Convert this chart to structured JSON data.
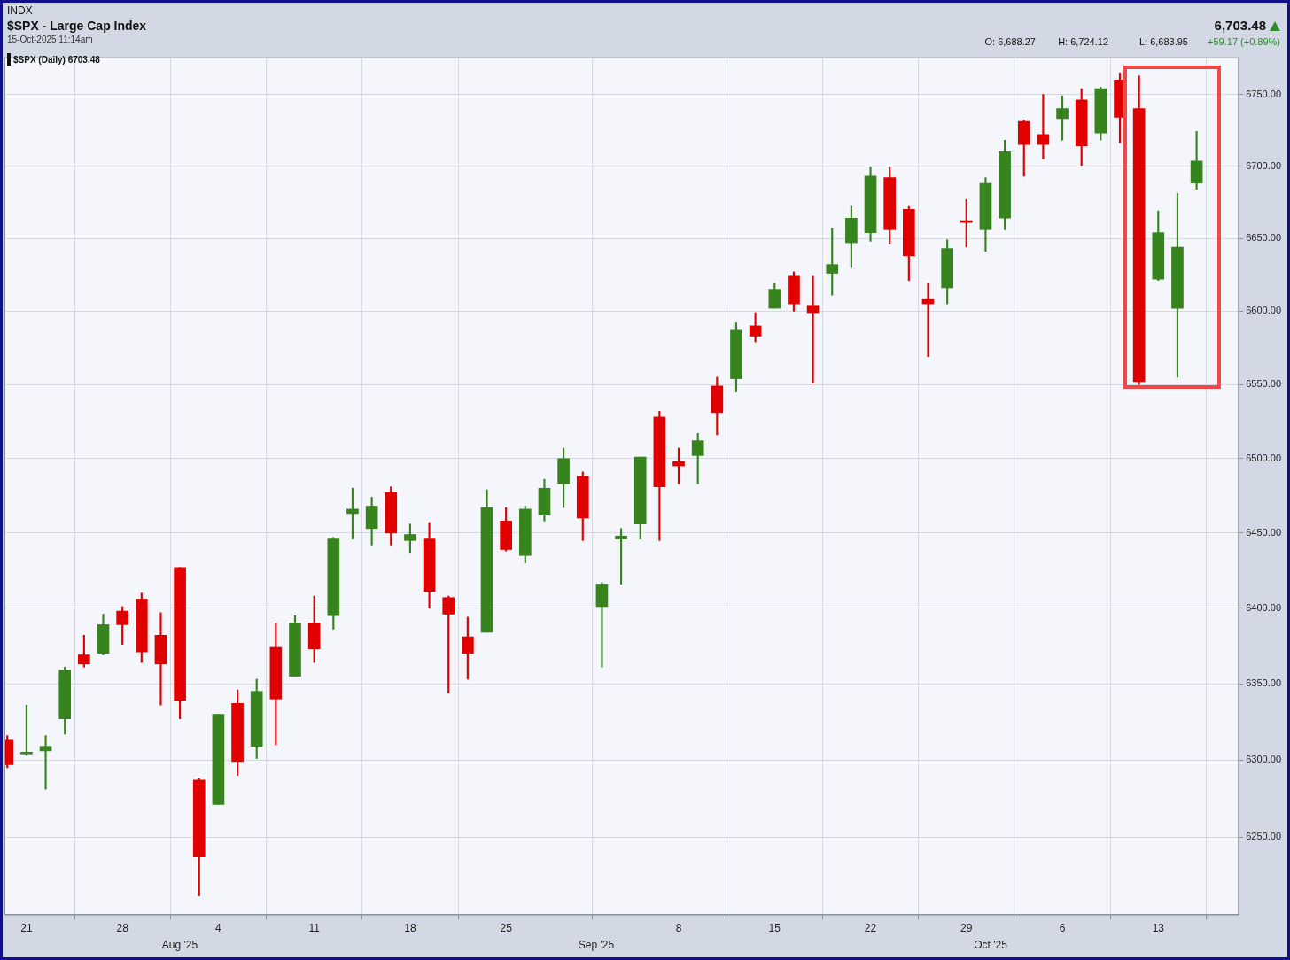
{
  "chart_data": {
    "type": "candlestick",
    "title": "$SPX - Large Cap Index",
    "subtitle": "15-Oct-2025 11:14am",
    "annotations": [
      "INDX",
      "6,703.48",
      "O: 6,688.27",
      "H: 6,724.12",
      "L: 6,683.95",
      "+59.17 (+0.89%)",
      "$SPX (Daily) 6703.48",
      "Aug '25",
      "Sep '25",
      "Oct '25"
    ],
    "categories": [
      null,
      "21",
      null,
      null,
      null,
      null,
      "28",
      null,
      null,
      null,
      null,
      "4",
      null,
      null,
      null,
      null,
      "11",
      null,
      null,
      null,
      null,
      "18",
      null,
      null,
      null,
      null,
      "25",
      null,
      null,
      null,
      null,
      null,
      null,
      null,
      null,
      "8",
      null,
      null,
      null,
      null,
      "15",
      null,
      null,
      null,
      null,
      "22",
      null,
      null,
      null,
      null,
      "29",
      null,
      null,
      null,
      null,
      "6",
      null,
      null,
      null,
      null,
      "13",
      null,
      null
    ],
    "ohlc": [
      [
        6313,
        6316,
        6295,
        6297
      ],
      [
        6304,
        6336,
        6303,
        6305
      ],
      [
        6306,
        6316,
        6281,
        6309
      ],
      [
        6327,
        6361,
        6317,
        6359
      ],
      [
        6369,
        6382,
        6361,
        6363
      ],
      [
        6370,
        6396,
        6369,
        6389
      ],
      [
        6398,
        6401,
        6376,
        6389
      ],
      [
        6406,
        6410,
        6364,
        6371
      ],
      [
        6382,
        6397,
        6336,
        6363
      ],
      [
        6427,
        6427,
        6327,
        6339
      ],
      [
        6287,
        6288,
        6212,
        6237
      ],
      [
        6271,
        6330,
        6271,
        6330
      ],
      [
        6337,
        6346,
        6290,
        6299
      ],
      [
        6309,
        6353,
        6301,
        6345
      ],
      [
        6374,
        6390,
        6310,
        6340
      ],
      [
        6355,
        6395,
        6355,
        6390
      ],
      [
        6390,
        6408,
        6364,
        6373
      ],
      [
        6395,
        6447,
        6386,
        6446
      ],
      [
        6463,
        6480,
        6446,
        6466
      ],
      [
        6453,
        6474,
        6442,
        6468
      ],
      [
        6477,
        6481,
        6442,
        6450
      ],
      [
        6445,
        6456,
        6437,
        6449
      ],
      [
        6446,
        6457,
        6400,
        6411
      ],
      [
        6407,
        6408,
        6344,
        6396
      ],
      [
        6381,
        6394,
        6353,
        6370
      ],
      [
        6384,
        6479,
        6384,
        6467
      ],
      [
        6458,
        6467,
        6438,
        6439
      ],
      [
        6435,
        6468,
        6430,
        6466
      ],
      [
        6462,
        6486,
        6458,
        6480
      ],
      [
        6483,
        6507,
        6467,
        6500
      ],
      [
        6488,
        6491,
        6445,
        6460
      ],
      [
        6401,
        6417,
        6361,
        6416
      ],
      [
        6446,
        6453,
        6416,
        6448
      ],
      [
        6456,
        6501,
        6446,
        6501
      ],
      [
        6528,
        6532,
        6445,
        6481
      ],
      [
        6498,
        6507,
        6483,
        6495
      ],
      [
        6502,
        6517,
        6483,
        6512
      ],
      [
        6549,
        6555,
        6516,
        6531
      ],
      [
        6554,
        6592,
        6545,
        6587
      ],
      [
        6590,
        6599,
        6579,
        6583
      ],
      [
        6602,
        6619,
        6602,
        6615
      ],
      [
        6624,
        6627,
        6600,
        6605
      ],
      [
        6604,
        6624,
        6551,
        6599
      ],
      [
        6626,
        6657,
        6611,
        6632
      ],
      [
        6647,
        6672,
        6630,
        6664
      ],
      [
        6654,
        6699,
        6648,
        6693
      ],
      [
        6692,
        6699,
        6646,
        6656
      ],
      [
        6670,
        6672,
        6621,
        6638
      ],
      [
        6608,
        6619,
        6569,
        6605
      ],
      [
        6616,
        6649,
        6605,
        6643
      ],
      [
        6662,
        6677,
        6644,
        6661
      ],
      [
        6656,
        6692,
        6641,
        6688
      ],
      [
        6664,
        6718,
        6656,
        6710
      ],
      [
        6731,
        6732,
        6693,
        6715
      ],
      [
        6722,
        6750,
        6705,
        6715
      ],
      [
        6733,
        6749,
        6718,
        6740
      ],
      [
        6746,
        6754,
        6700,
        6714
      ],
      [
        6723,
        6755,
        6718,
        6754
      ],
      [
        6760,
        6765,
        6716,
        6734
      ],
      [
        6740,
        6763,
        6550,
        6552
      ],
      [
        6622,
        6669,
        6621,
        6654
      ],
      [
        6602,
        6681,
        6555,
        6644
      ],
      [
        6688.27,
        6724.12,
        6683.95,
        6703.48
      ]
    ],
    "colors": [
      "#e00000",
      "#37841f",
      "#37841f",
      "#37841f",
      "#e00000",
      "#37841f",
      "#e00000",
      "#e00000",
      "#e00000",
      "#e00000",
      "#e00000",
      "#37841f",
      "#e00000",
      "#37841f",
      "#e00000",
      "#37841f",
      "#e00000",
      "#37841f",
      "#37841f",
      "#37841f",
      "#e00000",
      "#37841f",
      "#e00000",
      "#e00000",
      "#e00000",
      "#37841f",
      "#e00000",
      "#37841f",
      "#37841f",
      "#37841f",
      "#e00000",
      "#37841f",
      "#37841f",
      "#37841f",
      "#e00000",
      "#e00000",
      "#37841f",
      "#e00000",
      "#37841f",
      "#e00000",
      "#37841f",
      "#e00000",
      "#e00000",
      "#37841f",
      "#37841f",
      "#37841f",
      "#e00000",
      "#e00000",
      "#e00000",
      "#37841f",
      "#e00000",
      "#37841f",
      "#37841f",
      "#e00000",
      "#e00000",
      "#37841f",
      "#e00000",
      "#37841f",
      "#e00000",
      "#e00000",
      "#37841f",
      "#37841f",
      "#37841f"
    ],
    "ylim": [
      6200,
      6776
    ],
    "yticks": [
      {
        "value": 6250,
        "label": "6250.00"
      },
      {
        "value": 6300,
        "label": "6300.00"
      },
      {
        "value": 6350,
        "label": "6350.00"
      },
      {
        "value": 6400,
        "label": "6400.00"
      },
      {
        "value": 6450,
        "label": "6450.00"
      },
      {
        "value": 6500,
        "label": "6500.00"
      },
      {
        "value": 6550,
        "label": "6550.00"
      },
      {
        "value": 6600,
        "label": "6600.00"
      },
      {
        "value": 6650,
        "label": "6650.00"
      },
      {
        "value": 6700,
        "label": "6700.00"
      },
      {
        "value": 6750,
        "label": "6750.00"
      }
    ],
    "log": true,
    "grid": true
  }
}
